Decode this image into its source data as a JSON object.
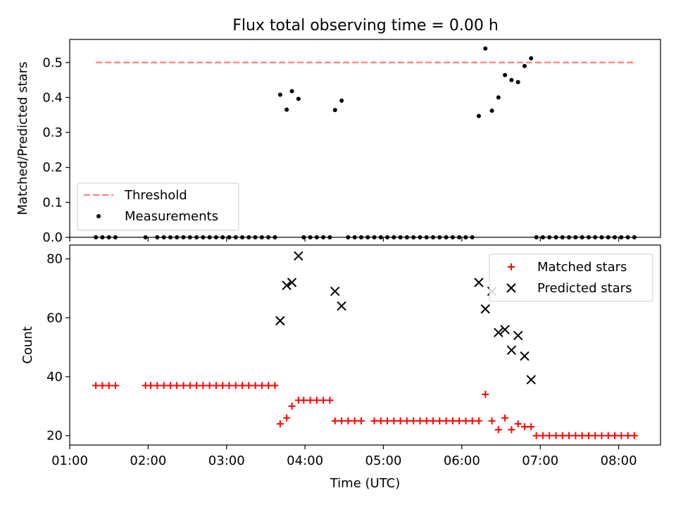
{
  "title": "Flux total observing time = 0.00 h",
  "colors": {
    "threshold": "#ff7f7f",
    "measurements": "#000000",
    "matched": "#ff0000",
    "predicted": "#000000"
  },
  "chart_data": [
    {
      "type": "scatter",
      "ylabel": "Matched/Predicted stars",
      "ylim": [
        0,
        0.566
      ],
      "yticks": [
        "0.0",
        "0.1",
        "0.2",
        "0.3",
        "0.4",
        "0.5"
      ],
      "yticks_values": [
        0,
        0.1,
        0.2,
        0.3,
        0.4,
        0.5
      ],
      "legend": {
        "placement": "lower-left",
        "entries": [
          "Threshold",
          "Measurements"
        ]
      },
      "threshold": {
        "value": 0.5,
        "x_range": [
          "01:20",
          "08:12"
        ]
      },
      "series": [
        {
          "name": "Measurements",
          "points": [
            [
              "01:20",
              0
            ],
            [
              "01:25",
              0
            ],
            [
              "01:30",
              0
            ],
            [
              "01:35",
              0
            ],
            [
              "01:58",
              0
            ],
            [
              "02:07",
              0
            ],
            [
              "02:12",
              0
            ],
            [
              "02:17",
              0
            ],
            [
              "02:22",
              0
            ],
            [
              "02:27",
              0
            ],
            [
              "02:32",
              0
            ],
            [
              "02:37",
              0
            ],
            [
              "02:42",
              0
            ],
            [
              "02:47",
              0
            ],
            [
              "02:52",
              0
            ],
            [
              "02:57",
              0
            ],
            [
              "03:02",
              0
            ],
            [
              "03:07",
              0
            ],
            [
              "03:12",
              0
            ],
            [
              "03:17",
              0
            ],
            [
              "03:22",
              0
            ],
            [
              "03:27",
              0
            ],
            [
              "03:32",
              0
            ],
            [
              "03:37",
              0
            ],
            [
              "03:41",
              0.408
            ],
            [
              "03:46",
              0.365
            ],
            [
              "03:50",
              0.418
            ],
            [
              "03:55",
              0.396
            ],
            [
              "03:59",
              0
            ],
            [
              "04:04",
              0
            ],
            [
              "04:09",
              0
            ],
            [
              "04:14",
              0
            ],
            [
              "04:19",
              0
            ],
            [
              "04:23",
              0.364
            ],
            [
              "04:28",
              0.391
            ],
            [
              "04:33",
              0
            ],
            [
              "04:38",
              0
            ],
            [
              "04:43",
              0
            ],
            [
              "04:48",
              0
            ],
            [
              "04:53",
              0
            ],
            [
              "04:58",
              0
            ],
            [
              "05:03",
              0
            ],
            [
              "05:08",
              0
            ],
            [
              "05:13",
              0
            ],
            [
              "05:18",
              0
            ],
            [
              "05:23",
              0
            ],
            [
              "05:28",
              0
            ],
            [
              "05:33",
              0
            ],
            [
              "05:38",
              0
            ],
            [
              "05:43",
              0
            ],
            [
              "05:48",
              0
            ],
            [
              "05:53",
              0
            ],
            [
              "05:58",
              0
            ],
            [
              "06:03",
              0
            ],
            [
              "06:08",
              0
            ],
            [
              "06:13",
              0.347
            ],
            [
              "06:18",
              0.54
            ],
            [
              "06:23",
              0.362
            ],
            [
              "06:28",
              0.4
            ],
            [
              "06:33",
              0.464
            ],
            [
              "06:38",
              0.45
            ],
            [
              "06:43",
              0.444
            ],
            [
              "06:48",
              0.49
            ],
            [
              "06:53",
              0.512
            ],
            [
              "06:57",
              0
            ],
            [
              "07:02",
              0
            ],
            [
              "07:07",
              0
            ],
            [
              "07:12",
              0
            ],
            [
              "07:17",
              0
            ],
            [
              "07:22",
              0
            ],
            [
              "07:27",
              0
            ],
            [
              "07:32",
              0
            ],
            [
              "07:37",
              0
            ],
            [
              "07:42",
              0
            ],
            [
              "07:47",
              0
            ],
            [
              "07:52",
              0
            ],
            [
              "07:57",
              0
            ],
            [
              "08:02",
              0
            ],
            [
              "08:07",
              0
            ],
            [
              "08:12",
              0
            ]
          ]
        }
      ]
    },
    {
      "type": "scatter",
      "xlabel": "Time (UTC)",
      "ylabel": "Count",
      "ylim": [
        16.8,
        84.7
      ],
      "yticks": [
        "20",
        "40",
        "60",
        "80"
      ],
      "yticks_values": [
        20,
        40,
        60,
        80
      ],
      "xlim": [
        "01:00",
        "08:32"
      ],
      "xticks": [
        "01:00",
        "02:00",
        "03:00",
        "04:00",
        "05:00",
        "06:00",
        "07:00",
        "08:00"
      ],
      "legend": {
        "placement": "top-right",
        "entries": [
          "Matched stars",
          "Predicted stars"
        ]
      },
      "series": [
        {
          "name": "Matched stars",
          "points": [
            [
              "01:20",
              37
            ],
            [
              "01:25",
              37
            ],
            [
              "01:30",
              37
            ],
            [
              "01:35",
              37
            ],
            [
              "01:58",
              37
            ],
            [
              "02:02",
              37
            ],
            [
              "02:07",
              37
            ],
            [
              "02:12",
              37
            ],
            [
              "02:17",
              37
            ],
            [
              "02:22",
              37
            ],
            [
              "02:27",
              37
            ],
            [
              "02:32",
              37
            ],
            [
              "02:37",
              37
            ],
            [
              "02:42",
              37
            ],
            [
              "02:47",
              37
            ],
            [
              "02:52",
              37
            ],
            [
              "02:57",
              37
            ],
            [
              "03:02",
              37
            ],
            [
              "03:07",
              37
            ],
            [
              "03:12",
              37
            ],
            [
              "03:17",
              37
            ],
            [
              "03:22",
              37
            ],
            [
              "03:27",
              37
            ],
            [
              "03:32",
              37
            ],
            [
              "03:37",
              37
            ],
            [
              "03:41",
              24
            ],
            [
              "03:46",
              26
            ],
            [
              "03:50",
              30
            ],
            [
              "03:55",
              32
            ],
            [
              "03:59",
              32
            ],
            [
              "04:04",
              32
            ],
            [
              "04:09",
              32
            ],
            [
              "04:14",
              32
            ],
            [
              "04:19",
              32
            ],
            [
              "04:23",
              25
            ],
            [
              "04:28",
              25
            ],
            [
              "04:33",
              25
            ],
            [
              "04:38",
              25
            ],
            [
              "04:43",
              25
            ],
            [
              "04:53",
              25
            ],
            [
              "04:58",
              25
            ],
            [
              "05:03",
              25
            ],
            [
              "05:08",
              25
            ],
            [
              "05:13",
              25
            ],
            [
              "05:18",
              25
            ],
            [
              "05:23",
              25
            ],
            [
              "05:28",
              25
            ],
            [
              "05:33",
              25
            ],
            [
              "05:38",
              25
            ],
            [
              "05:43",
              25
            ],
            [
              "05:48",
              25
            ],
            [
              "05:53",
              25
            ],
            [
              "05:58",
              25
            ],
            [
              "06:03",
              25
            ],
            [
              "06:08",
              25
            ],
            [
              "06:13",
              25
            ],
            [
              "06:18",
              34
            ],
            [
              "06:23",
              25
            ],
            [
              "06:28",
              22
            ],
            [
              "06:33",
              26
            ],
            [
              "06:38",
              22
            ],
            [
              "06:43",
              24
            ],
            [
              "06:48",
              23
            ],
            [
              "06:53",
              23
            ],
            [
              "06:57",
              20
            ],
            [
              "07:02",
              20
            ],
            [
              "07:07",
              20
            ],
            [
              "07:12",
              20
            ],
            [
              "07:17",
              20
            ],
            [
              "07:22",
              20
            ],
            [
              "07:27",
              20
            ],
            [
              "07:32",
              20
            ],
            [
              "07:37",
              20
            ],
            [
              "07:42",
              20
            ],
            [
              "07:47",
              20
            ],
            [
              "07:52",
              20
            ],
            [
              "07:57",
              20
            ],
            [
              "08:02",
              20
            ],
            [
              "08:07",
              20
            ],
            [
              "08:12",
              20
            ]
          ]
        },
        {
          "name": "Predicted stars",
          "points": [
            [
              "03:41",
              59
            ],
            [
              "03:46",
              71
            ],
            [
              "03:50",
              72
            ],
            [
              "03:55",
              81
            ],
            [
              "04:23",
              69
            ],
            [
              "04:28",
              64
            ],
            [
              "06:13",
              72
            ],
            [
              "06:18",
              63
            ],
            [
              "06:23",
              69
            ],
            [
              "06:28",
              55
            ],
            [
              "06:33",
              56
            ],
            [
              "06:38",
              49
            ],
            [
              "06:43",
              54
            ],
            [
              "06:48",
              47
            ],
            [
              "06:53",
              39
            ]
          ]
        }
      ]
    }
  ]
}
